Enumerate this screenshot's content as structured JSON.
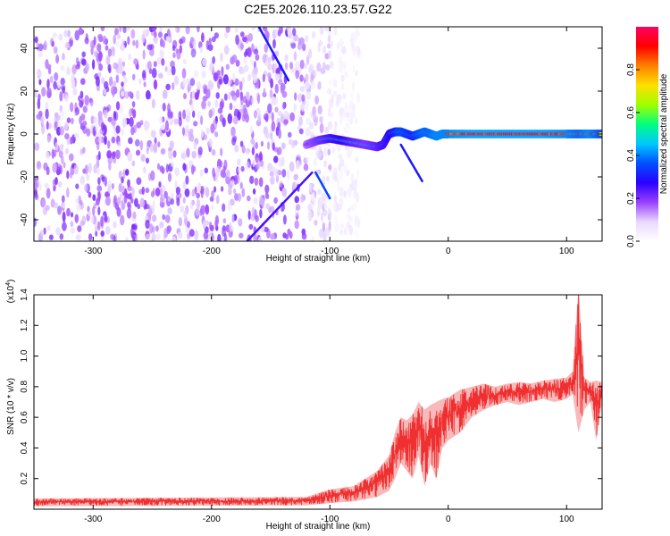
{
  "title": "C2E5.2026.110.23.57.G22",
  "colors": {
    "signal": "#f03030",
    "signal_fill": "#f08080",
    "colorbar": [
      "#ffffff",
      "#e8d8ff",
      "#9a40ff",
      "#2a00ff",
      "#0050ff",
      "#00c8ff",
      "#00ff80",
      "#a0ff00",
      "#ffe000",
      "#ff8000",
      "#ff0000",
      "#ff0060"
    ]
  },
  "chart_data": [
    {
      "type": "heatmap",
      "name": "spectrogram",
      "title": "C2E5.2026.110.23.57.G22",
      "xlabel": "Height of straight line (km)",
      "ylabel": "Frequency (Hz)",
      "xlim": [
        -350,
        130
      ],
      "ylim": [
        -50,
        50
      ],
      "x_ticks": [
        -300,
        -200,
        -100,
        0,
        100
      ],
      "x_tick_labels": [
        "-300",
        "-200",
        "-100",
        "0",
        "100"
      ],
      "y_ticks": [
        -40,
        -20,
        0,
        20,
        40
      ],
      "y_tick_labels": [
        "-40",
        "-20",
        "0",
        "20",
        "40"
      ],
      "colorbar": {
        "label": "Normalized spectral amplitude",
        "range": [
          0,
          1
        ],
        "ticks": [
          0.0,
          0.2,
          0.4,
          0.6,
          0.8
        ],
        "tick_labels": [
          "0.0",
          "0.2",
          "0.4",
          "0.6",
          "0.8"
        ]
      },
      "features": {
        "noise_region_x": [
          -350,
          -75
        ],
        "tone_track": {
          "x": [
            -120,
            -110,
            -100,
            -90,
            -80,
            -70,
            -60,
            -55,
            -50,
            -45,
            -40,
            -35,
            -30,
            -25,
            -20,
            -15,
            -10,
            -5,
            0,
            20,
            40,
            60,
            80,
            100,
            110,
            120,
            130
          ],
          "freq": [
            -5,
            -3,
            -2,
            -3,
            -4,
            -5,
            -6,
            -5,
            0,
            1,
            1,
            0,
            -1,
            0,
            1,
            0,
            -1,
            0,
            0,
            0,
            0,
            0,
            0,
            0,
            0,
            0,
            0
          ],
          "amplitude": [
            0.35,
            0.45,
            0.55,
            0.6,
            0.5,
            0.45,
            0.5,
            0.55,
            0.6,
            0.7,
            0.8,
            0.75,
            0.7,
            0.8,
            0.85,
            0.85,
            0.9,
            0.9,
            0.9,
            0.95,
            0.95,
            0.95,
            0.95,
            0.9,
            0.85,
            0.9,
            0.8
          ]
        },
        "chirps": [
          {
            "x": [
              -160,
              -135
            ],
            "freq": [
              50,
              25
            ],
            "amplitude": 0.3
          },
          {
            "x": [
              -170,
              -115
            ],
            "freq": [
              -50,
              -18
            ],
            "amplitude": 0.25
          },
          {
            "x": [
              -112,
              -100
            ],
            "freq": [
              -18,
              -30
            ],
            "amplitude": 0.35
          },
          {
            "x": [
              -40,
              -22
            ],
            "freq": [
              -5,
              -22
            ],
            "amplitude": 0.3
          }
        ]
      }
    },
    {
      "type": "line",
      "name": "snr",
      "xlabel": "Height of straight line (km)",
      "ylabel": "SNR (10 * v/v)",
      "y_scale_label": "(x10",
      "y_scale_exponent": "4",
      "xlim": [
        -350,
        130
      ],
      "ylim": [
        0,
        14000
      ],
      "x_ticks": [
        -300,
        -200,
        -100,
        0,
        100
      ],
      "x_tick_labels": [
        "-300",
        "-200",
        "-100",
        "0",
        "100"
      ],
      "y_ticks": [
        2000,
        4000,
        6000,
        8000,
        10000,
        12000,
        14000
      ],
      "y_tick_labels": [
        "0.2",
        "0.4",
        "0.6",
        "0.8",
        "1.0",
        "1.2",
        "1.4"
      ],
      "envelope": {
        "x": [
          -350,
          -120,
          -100,
          -80,
          -60,
          -50,
          -45,
          -40,
          -35,
          -30,
          -25,
          -20,
          -15,
          -10,
          -5,
          0,
          10,
          20,
          30,
          40,
          50,
          60,
          70,
          80,
          90,
          100,
          105,
          110,
          115,
          120,
          125,
          130
        ],
        "low": [
          200,
          250,
          400,
          500,
          800,
          1200,
          2000,
          3000,
          2500,
          2000,
          3500,
          1500,
          3000,
          2000,
          4000,
          4500,
          5000,
          6000,
          6500,
          6800,
          7000,
          6800,
          7000,
          7200,
          7000,
          7200,
          7500,
          5000,
          6500,
          7000,
          4500,
          7000
        ],
        "high": [
          700,
          800,
          1300,
          1500,
          2500,
          3500,
          5000,
          6000,
          5800,
          6200,
          7000,
          6500,
          6800,
          7000,
          7200,
          7300,
          7800,
          8000,
          8200,
          8000,
          8200,
          8300,
          8200,
          8400,
          8500,
          8600,
          9000,
          14500,
          8600,
          8300,
          8400,
          8300
        ]
      }
    }
  ],
  "axes_top": {
    "xlabel": "Height of straight line (km)",
    "ylabel": "Frequency (Hz)",
    "colorbar_label": "Normalized spectral amplitude"
  },
  "axes_bottom": {
    "xlabel": "Height of straight line (km)",
    "ylabel": "SNR (10 * v/v)",
    "scale_prefix": "(x10",
    "scale_exp": "4",
    "scale_suffix": ")"
  }
}
